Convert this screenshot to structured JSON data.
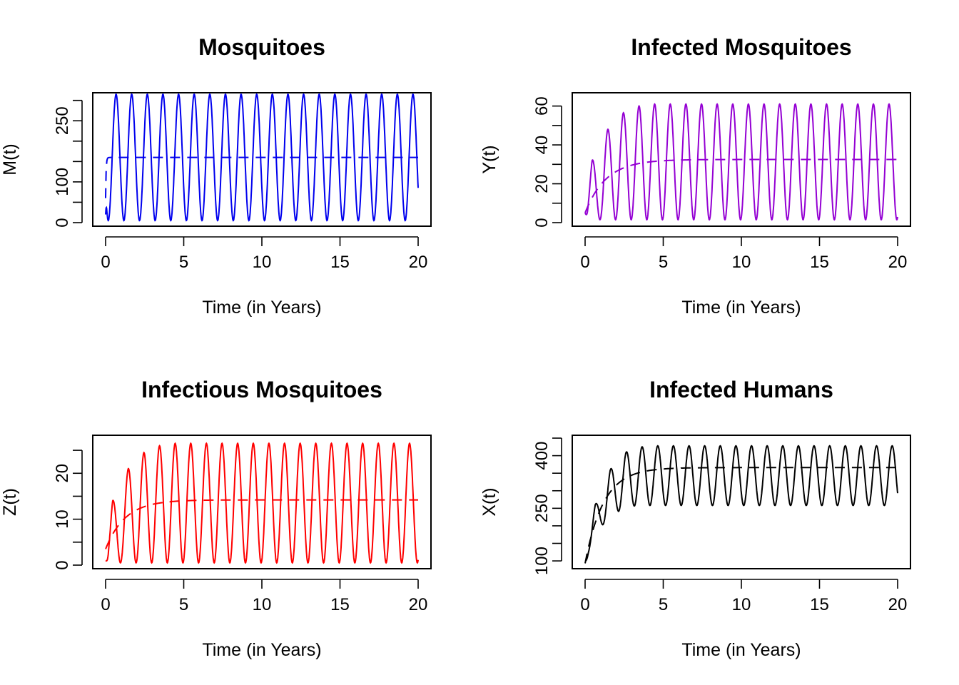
{
  "chart_data": [
    {
      "type": "line",
      "title": "Mosquitoes",
      "xlabel": "Time (in Years)",
      "ylabel": "M(t)",
      "xlim": [
        0,
        20
      ],
      "ylim": [
        0,
        310
      ],
      "xticks": [
        0,
        5,
        10,
        15,
        20
      ],
      "yticks": [
        0,
        50,
        100,
        150,
        200,
        250,
        300
      ],
      "ytick_labels": [
        {
          "value": 0,
          "label": "0"
        },
        {
          "value": 100,
          "label": "100"
        },
        {
          "value": 250,
          "label": "250"
        }
      ],
      "series": [
        {
          "style": "solid",
          "color": "#0000ee",
          "kind": "oscillation",
          "mean": 160,
          "amplitude": 155,
          "period": 1.0,
          "start": 20,
          "end": 130
        },
        {
          "style": "dashed",
          "color": "#0000ee",
          "kind": "saturating",
          "start": 60,
          "plateau": 160,
          "rate": 30
        }
      ]
    },
    {
      "type": "line",
      "title": "Infected Mosquitoes",
      "xlabel": "Time (in Years)",
      "ylabel": "Y(t)",
      "xlim": [
        0,
        20
      ],
      "ylim": [
        0,
        65
      ],
      "xticks": [
        0,
        5,
        10,
        15,
        20
      ],
      "yticks": [
        0,
        10,
        20,
        30,
        40,
        50,
        60
      ],
      "ytick_labels": [
        {
          "value": 0,
          "label": "0"
        },
        {
          "value": 20,
          "label": "20"
        },
        {
          "value": 40,
          "label": "40"
        },
        {
          "value": 60,
          "label": "60"
        }
      ],
      "series": [
        {
          "style": "solid",
          "color": "#9400d3",
          "kind": "growing_oscillation",
          "x": [
            0,
            0.45,
            1.45,
            2.45,
            3.45,
            4.45,
            5.45,
            20
          ],
          "peaks": [
            5,
            32,
            48,
            56.5,
            60,
            61,
            61,
            61
          ],
          "trough": 1.5,
          "period": 1.0,
          "end": 16
        },
        {
          "style": "dashed",
          "color": "#9400d3",
          "kind": "saturating",
          "start": 5,
          "plateau": 32.5,
          "rate": 0.75
        }
      ]
    },
    {
      "type": "line",
      "title": "Infectious Mosquitoes",
      "xlabel": "Time (in Years)",
      "ylabel": "Z(t)",
      "xlim": [
        0,
        20
      ],
      "ylim": [
        0,
        27.5
      ],
      "xticks": [
        0,
        5,
        10,
        15,
        20
      ],
      "yticks": [
        0,
        5,
        10,
        15,
        20,
        25
      ],
      "ytick_labels": [
        {
          "value": 0,
          "label": "0"
        },
        {
          "value": 10,
          "label": "10"
        },
        {
          "value": 20,
          "label": "20"
        }
      ],
      "series": [
        {
          "style": "solid",
          "color": "#ff0000",
          "kind": "growing_oscillation",
          "x": [
            0,
            0.45,
            1.45,
            2.45,
            3.45,
            4.45,
            5.45,
            20
          ],
          "peaks": [
            1,
            14,
            21,
            24.5,
            26,
            26.5,
            26.5,
            26.5
          ],
          "trough": 0.5,
          "period": 1.0,
          "end": 5.5
        },
        {
          "style": "dashed",
          "color": "#ff0000",
          "kind": "saturating",
          "start": 3.5,
          "plateau": 14.2,
          "rate": 0.8
        }
      ]
    },
    {
      "type": "line",
      "title": "Infected Humans",
      "xlabel": "Time (in Years)",
      "ylabel": "X(t)",
      "xlim": [
        0,
        20
      ],
      "ylim": [
        88,
        448
      ],
      "xticks": [
        0,
        5,
        10,
        15,
        20
      ],
      "yticks": [
        100,
        150,
        200,
        250,
        300,
        350,
        400,
        450
      ],
      "ytick_labels": [
        {
          "value": 100,
          "label": "100"
        },
        {
          "value": 250,
          "label": "250"
        },
        {
          "value": 400,
          "label": "400"
        }
      ],
      "series": [
        {
          "style": "solid",
          "color": "#000000",
          "kind": "growing_oscillation_lagged",
          "x": [
            0,
            0.65,
            1.6,
            2.6,
            3.6,
            4.6,
            5.6,
            20
          ],
          "peaks": [
            100,
            260,
            360,
            410,
            425,
            428,
            428,
            428
          ],
          "troughs": [
            95,
            180,
            225,
            255,
            258,
            258,
            258,
            258
          ],
          "period": 1.0,
          "end": 260
        },
        {
          "style": "dashed",
          "color": "#000000",
          "kind": "saturating",
          "start": 93,
          "plateau": 366,
          "rate": 0.85
        }
      ]
    }
  ]
}
